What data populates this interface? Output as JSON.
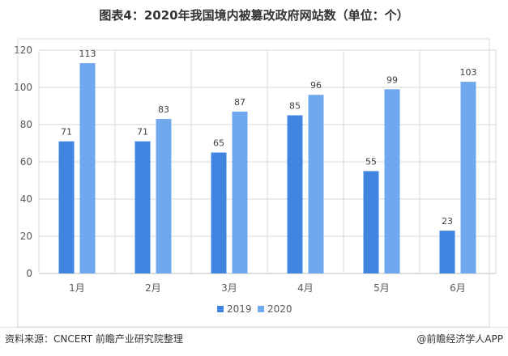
{
  "title": "图表4：2020年我国境内被篡改政府网站数（单位：个）",
  "source": "资料来源：CNCERT 前瞻产业研究院整理",
  "brand": "@前瞻经济学人APP",
  "colors": {
    "2019": "#4285e0",
    "2020": "#6fa8ec",
    "grid": "#d9d9d9"
  },
  "chart_data": {
    "type": "bar",
    "categories": [
      "1月",
      "2月",
      "3月",
      "4月",
      "5月",
      "6月"
    ],
    "series": [
      {
        "name": "2019",
        "values": [
          71,
          71,
          65,
          85,
          55,
          23
        ]
      },
      {
        "name": "2020",
        "values": [
          113,
          83,
          87,
          96,
          99,
          103
        ]
      }
    ],
    "title": "图表4：2020年我国境内被篡改政府网站数（单位：个）",
    "xlabel": "",
    "ylabel": "",
    "ylim": [
      0,
      120
    ],
    "yticks": [
      0,
      20,
      40,
      60,
      80,
      100,
      120
    ],
    "grid": true,
    "legend": "bottom"
  }
}
